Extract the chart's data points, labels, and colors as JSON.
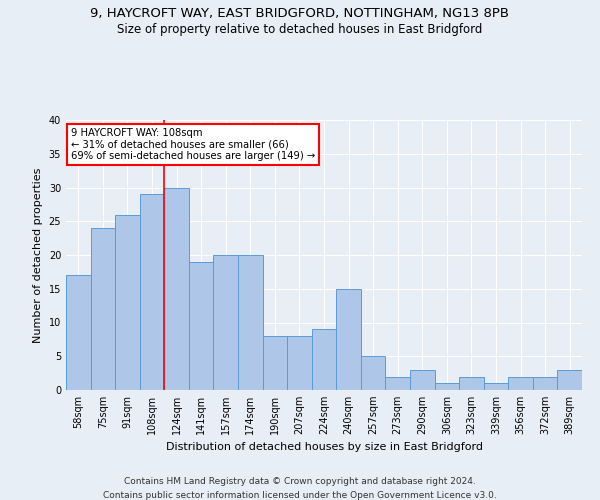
{
  "title1": "9, HAYCROFT WAY, EAST BRIDGFORD, NOTTINGHAM, NG13 8PB",
  "title2": "Size of property relative to detached houses in East Bridgford",
  "xlabel": "Distribution of detached houses by size in East Bridgford",
  "ylabel": "Number of detached properties",
  "categories": [
    "58sqm",
    "75sqm",
    "91sqm",
    "108sqm",
    "124sqm",
    "141sqm",
    "157sqm",
    "174sqm",
    "190sqm",
    "207sqm",
    "224sqm",
    "240sqm",
    "257sqm",
    "273sqm",
    "290sqm",
    "306sqm",
    "323sqm",
    "339sqm",
    "356sqm",
    "372sqm",
    "389sqm"
  ],
  "values": [
    17,
    24,
    26,
    29,
    30,
    19,
    20,
    20,
    8,
    8,
    9,
    15,
    5,
    2,
    3,
    1,
    2,
    1,
    2,
    2,
    3
  ],
  "bar_color": "#aec6e8",
  "bar_edge_color": "#5b9bd5",
  "vline_x": 3,
  "annotation_text": "9 HAYCROFT WAY: 108sqm\n← 31% of detached houses are smaller (66)\n69% of semi-detached houses are larger (149) →",
  "annotation_box_color": "white",
  "annotation_box_edge_color": "red",
  "ylim": [
    0,
    40
  ],
  "yticks": [
    0,
    5,
    10,
    15,
    20,
    25,
    30,
    35,
    40
  ],
  "footer1": "Contains HM Land Registry data © Crown copyright and database right 2024.",
  "footer2": "Contains public sector information licensed under the Open Government Licence v3.0.",
  "bg_color": "#e8eef5",
  "plot_bg_color": "#e8eef5",
  "grid_color": "white",
  "title_fontsize": 9.5,
  "subtitle_fontsize": 8.5,
  "label_fontsize": 8,
  "tick_fontsize": 7,
  "footer_fontsize": 6.5
}
